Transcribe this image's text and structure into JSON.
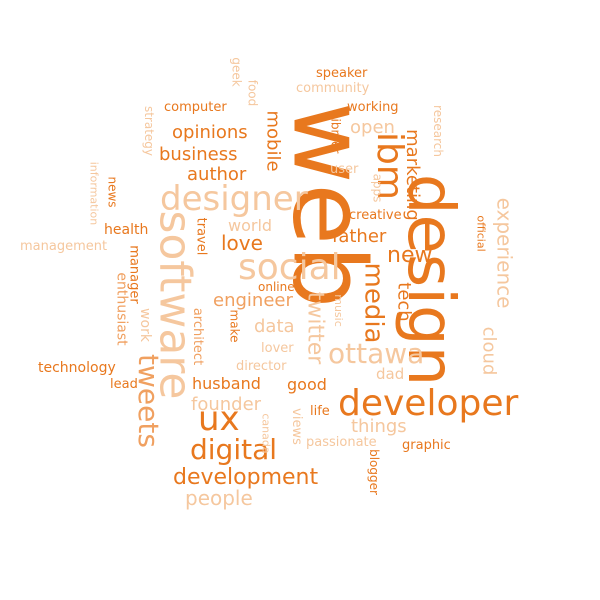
{
  "palette": {
    "dark": "#e8781e",
    "medium": "#f0a060",
    "light": "#f5c79e"
  },
  "words": {
    "web": "web",
    "design": "design",
    "software": "software",
    "developer": "developer",
    "social": "social",
    "designer": "designer",
    "ux": "ux",
    "ibm": "ibm",
    "digital": "digital",
    "tweets": "tweets",
    "ottawa": "ottawa",
    "media": "media",
    "experience": "experience",
    "development": "development",
    "twitter": "twitter",
    "mobile": "mobile",
    "marketing": "marketing",
    "people": "people",
    "father": "father",
    "love": "love",
    "new": "new",
    "author": "author",
    "business": "business",
    "opinions": "opinions",
    "open": "open",
    "cloud": "cloud",
    "tech": "tech",
    "engineer": "engineer",
    "data": "data",
    "husband": "husband",
    "founder": "founder",
    "things": "things",
    "good": "good",
    "world": "world",
    "health": "health",
    "technology": "technology",
    "management": "management",
    "enthusiast": "enthusiast",
    "manager": "manager",
    "work": "work",
    "news": "news",
    "information": "information",
    "strategy": "strategy",
    "computer": "computer",
    "geek": "geek",
    "food": "food",
    "speaker": "speaker",
    "community": "community",
    "working": "working",
    "ibmer": "ibmer",
    "user": "user",
    "apps": "apps",
    "research": "research",
    "creative": "creative",
    "official": "official",
    "travel": "travel",
    "architect": "architect",
    "make": "make",
    "online": "online",
    "music": "music",
    "director": "director",
    "lover": "lover",
    "dad": "dad",
    "lead": "lead",
    "life": "life",
    "views": "views",
    "canada": "canada",
    "passionate": "passionate",
    "graphic": "graphic",
    "blogger": "blogger"
  }
}
